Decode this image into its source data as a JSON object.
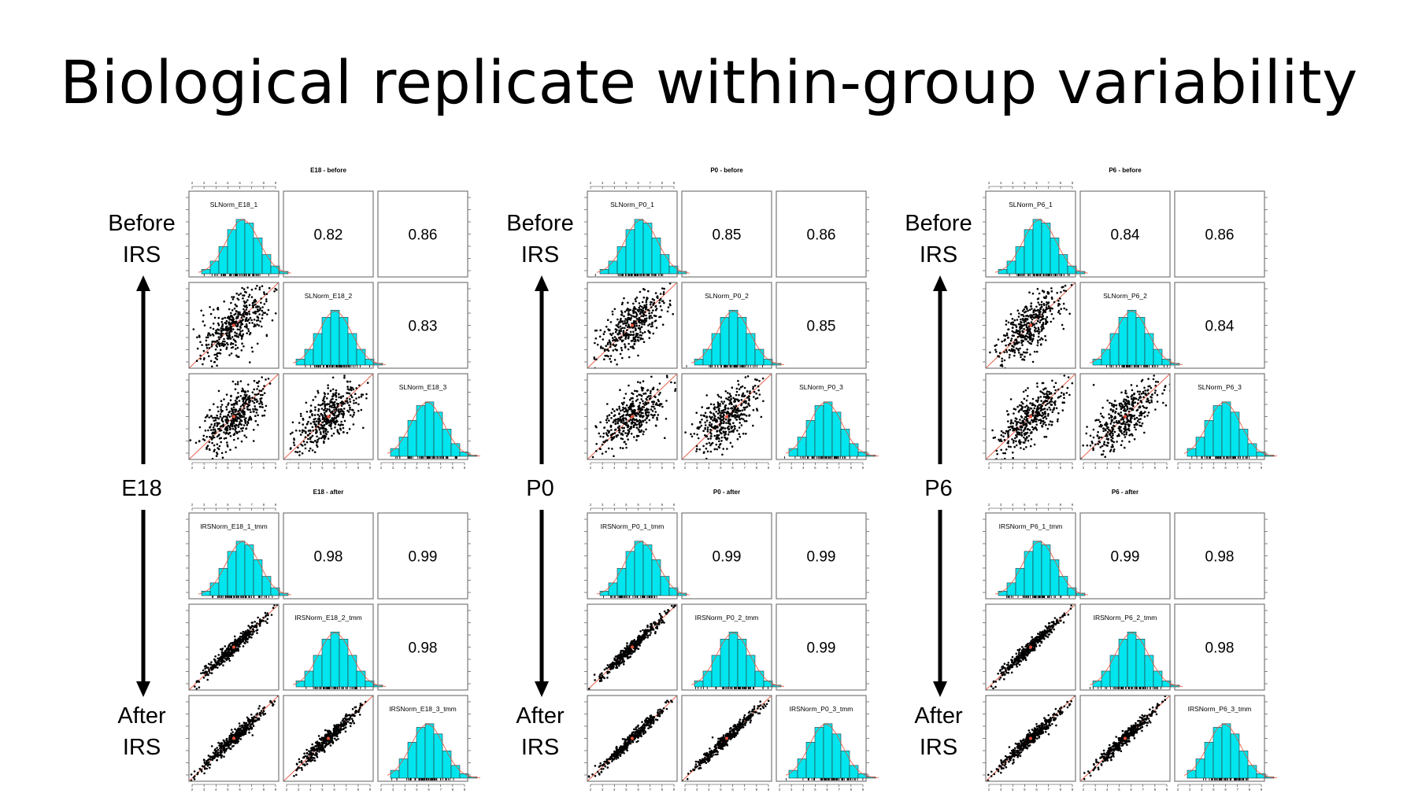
{
  "slide": {
    "title": "Biological replicate within-group variability"
  },
  "groups": [
    {
      "id": "E18",
      "label": "E18",
      "before_label_l1": "Before",
      "before_label_l2": "IRS",
      "after_label_l1": "After",
      "after_label_l2": "IRS"
    },
    {
      "id": "P0",
      "label": "P0",
      "before_label_l1": "Before",
      "before_label_l2": "IRS",
      "after_label_l1": "After",
      "after_label_l2": "IRS"
    },
    {
      "id": "P6",
      "label": "P6",
      "before_label_l1": "Before",
      "before_label_l2": "IRS",
      "after_label_l1": "After",
      "after_label_l2": "IRS"
    }
  ],
  "chart_data": [
    {
      "type": "scatter-matrix",
      "title": "E18 - before",
      "variables": [
        "SLNorm_E18_1",
        "SLNorm_E18_2",
        "SLNorm_E18_3"
      ],
      "correlations": [
        [
          "0.82",
          "0.86"
        ],
        [
          "0.83"
        ]
      ],
      "x_ticks": [
        "2",
        "3",
        "4",
        "5",
        "6",
        "7",
        "8",
        "9"
      ]
    },
    {
      "type": "scatter-matrix",
      "title": "P0 - before",
      "variables": [
        "SLNorm_P0_1",
        "SLNorm_P0_2",
        "SLNorm_P0_3"
      ],
      "correlations": [
        [
          "0.85",
          "0.86"
        ],
        [
          "0.85"
        ]
      ],
      "x_ticks": [
        "2",
        "3",
        "4",
        "5",
        "6",
        "7",
        "8",
        "9"
      ]
    },
    {
      "type": "scatter-matrix",
      "title": "P6 - before",
      "variables": [
        "SLNorm_P6_1",
        "SLNorm_P6_2",
        "SLNorm_P6_3"
      ],
      "correlations": [
        [
          "0.84",
          "0.86"
        ],
        [
          "0.84"
        ]
      ],
      "x_ticks": [
        "2",
        "3",
        "4",
        "5",
        "6",
        "7",
        "8",
        "9"
      ]
    },
    {
      "type": "scatter-matrix",
      "title": "E18 - after",
      "variables": [
        "IRSNorm_E18_1_tmm",
        "IRSNorm_E18_2_tmm",
        "IRSNorm_E18_3_tmm"
      ],
      "correlations": [
        [
          "0.98",
          "0.99"
        ],
        [
          "0.98"
        ]
      ],
      "x_ticks": [
        "2",
        "3",
        "4",
        "5",
        "6",
        "7",
        "8",
        "9"
      ]
    },
    {
      "type": "scatter-matrix",
      "title": "P0 - after",
      "variables": [
        "IRSNorm_P0_1_tmm",
        "IRSNorm_P0_2_tmm",
        "IRSNorm_P0_3_tmm"
      ],
      "correlations": [
        [
          "0.99",
          "0.99"
        ],
        [
          "0.99"
        ]
      ],
      "x_ticks": [
        "2",
        "3",
        "4",
        "5",
        "6",
        "7",
        "8",
        "9"
      ]
    },
    {
      "type": "scatter-matrix",
      "title": "P6 - after",
      "variables": [
        "IRSNorm_P6_1_tmm",
        "IRSNorm_P6_2_tmm",
        "IRSNorm_P6_3_tmm"
      ],
      "correlations": [
        [
          "0.99",
          "0.98"
        ],
        [
          "0.98"
        ]
      ],
      "x_ticks": [
        "2",
        "3",
        "4",
        "5",
        "6",
        "7",
        "8",
        "9"
      ]
    }
  ],
  "colors": {
    "hist_fill": "#00E5EE",
    "fit_line": "#E8503A",
    "points": "#000000",
    "panel_border": "#777777"
  }
}
